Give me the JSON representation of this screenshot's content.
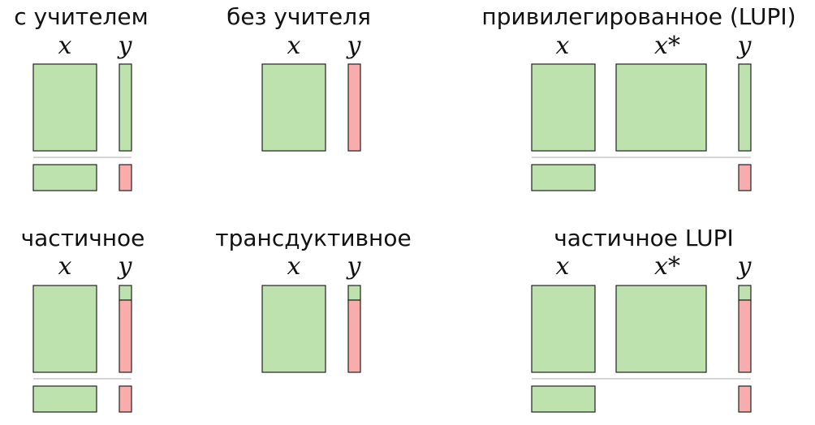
{
  "colors": {
    "labeled": "#bde2ad",
    "unlabeled": "#f8acac",
    "separator": "#c8c8c8"
  },
  "variables": {
    "x": "x",
    "x_star": "x*",
    "y": "y"
  },
  "panels": [
    {
      "id": "supervised",
      "title": "с учителем",
      "y_labels": "all",
      "has_x_star": false,
      "has_test": true
    },
    {
      "id": "unsupervised",
      "title": "без учителя",
      "y_labels": "none",
      "has_x_star": false,
      "has_test": false
    },
    {
      "id": "lupi",
      "title": "привилегированное (LUPI)",
      "y_labels": "all",
      "has_x_star": true,
      "has_test": true
    },
    {
      "id": "semi-supervised",
      "title": "частичное",
      "y_labels": "partial",
      "has_x_star": false,
      "has_test": true
    },
    {
      "id": "transductive",
      "title": "трансдуктивное",
      "y_labels": "partial",
      "has_x_star": false,
      "has_test": false
    },
    {
      "id": "semi-lupi",
      "title": "частичное LUPI",
      "y_labels": "partial",
      "has_x_star": true,
      "has_test": true
    }
  ]
}
